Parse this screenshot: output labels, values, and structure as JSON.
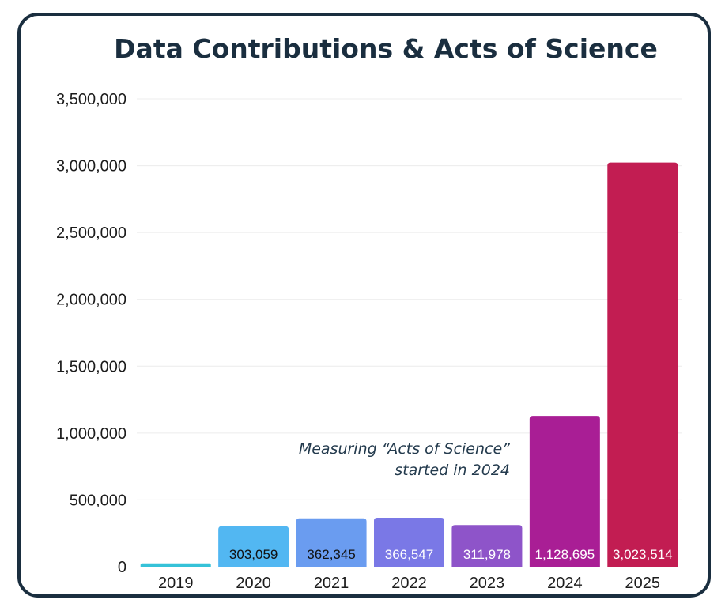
{
  "chart_data": {
    "type": "bar",
    "title": "Data Contributions & Acts of Science",
    "xlabel": "",
    "ylabel": "",
    "categories": [
      "2019",
      "2020",
      "2021",
      "2022",
      "2023",
      "2024",
      "2025"
    ],
    "values": [
      25000,
      303059,
      362345,
      366547,
      311978,
      1128695,
      3023514
    ],
    "data_labels": [
      "",
      "303,059",
      "362,345",
      "366,547",
      "311,978",
      "1,128,695",
      "3,023,514"
    ],
    "bar_colors": [
      "#35c2d8",
      "#52b7f2",
      "#6a9cf0",
      "#7a78e6",
      "#8e54c9",
      "#a91e95",
      "#c21d52"
    ],
    "label_colors": [
      "#111111",
      "#111111",
      "#111111",
      "#ffffff",
      "#ffffff",
      "#ffffff",
      "#ffffff"
    ],
    "ylim": [
      0,
      3500000
    ],
    "yticks": [
      0,
      500000,
      1000000,
      1500000,
      2000000,
      2500000,
      3000000,
      3500000
    ],
    "ytick_labels": [
      "0",
      "500,000",
      "1,000,000",
      "1,500,000",
      "2,000,000",
      "2,500,000",
      "3,000,000",
      "3,500,000"
    ],
    "grid": true,
    "legend": "none",
    "annotation": {
      "line1": "Measuring “Acts of Science”",
      "line2": "started in 2024"
    }
  },
  "colors": {
    "border": "#1a2e3f",
    "title": "#1a2e3f",
    "grid": "#ececec"
  }
}
